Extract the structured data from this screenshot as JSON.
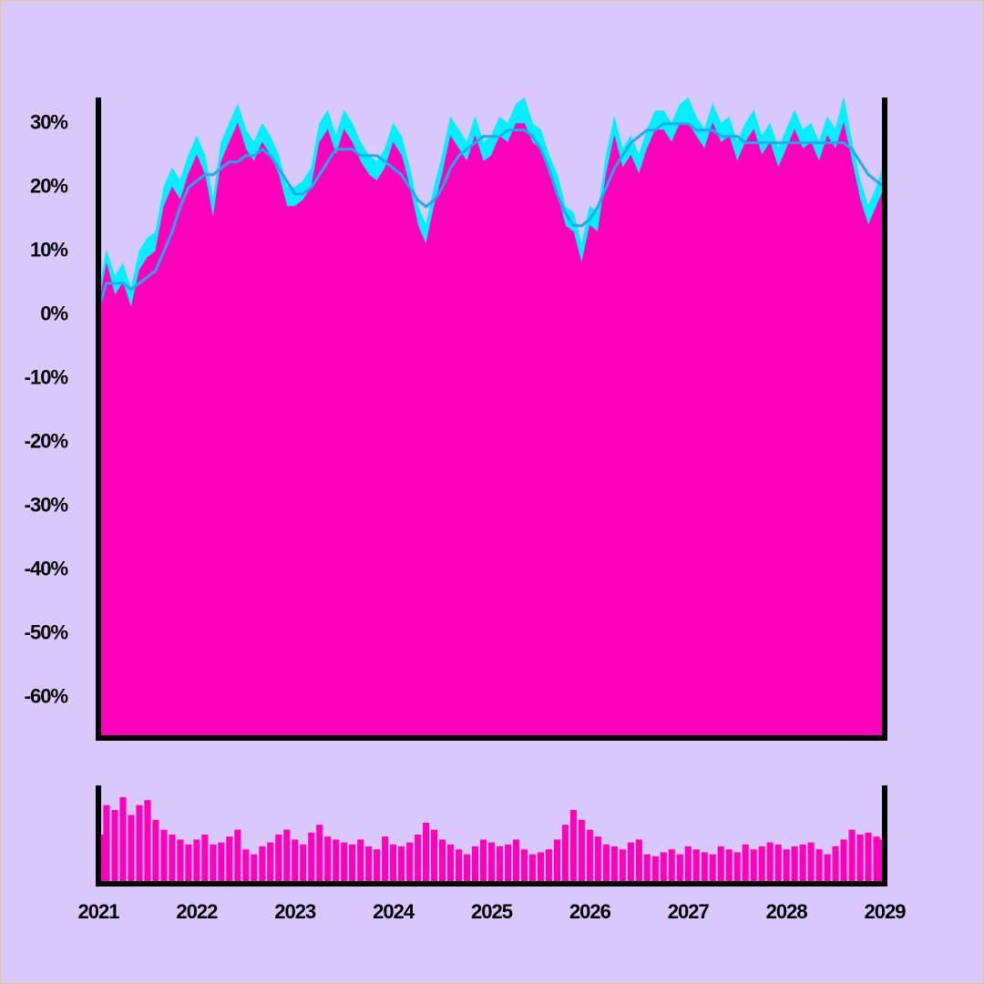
{
  "chart_data": [
    {
      "type": "area",
      "x": [
        2021,
        2021.083,
        2021.167,
        2021.25,
        2021.333,
        2021.417,
        2021.5,
        2021.583,
        2021.667,
        2021.75,
        2021.833,
        2021.917,
        2022,
        2022.083,
        2022.167,
        2022.25,
        2022.333,
        2022.417,
        2022.5,
        2022.583,
        2022.667,
        2022.75,
        2022.833,
        2022.917,
        2023,
        2023.083,
        2023.167,
        2023.25,
        2023.333,
        2023.417,
        2023.5,
        2023.583,
        2023.667,
        2023.75,
        2023.833,
        2023.917,
        2024,
        2024.083,
        2024.167,
        2024.25,
        2024.333,
        2024.417,
        2024.5,
        2024.583,
        2024.667,
        2024.75,
        2024.833,
        2024.917,
        2025,
        2025.083,
        2025.167,
        2025.25,
        2025.333,
        2025.417,
        2025.5,
        2025.583,
        2025.667,
        2025.75,
        2025.833,
        2025.917,
        2026,
        2026.083,
        2026.167,
        2026.25,
        2026.333,
        2026.417,
        2026.5,
        2026.583,
        2026.667,
        2026.75,
        2026.833,
        2026.917,
        2027,
        2027.083,
        2027.167,
        2027.25,
        2027.333,
        2027.417,
        2027.5,
        2027.583,
        2027.667,
        2027.75,
        2027.833,
        2027.917,
        2028,
        2028.083,
        2028.167,
        2028.25,
        2028.333,
        2028.417,
        2028.5,
        2028.583,
        2028.667,
        2028.75,
        2028.833,
        2028.917,
        2029
      ],
      "series": [
        {
          "color": "#00f0ff",
          "values": [
            3,
            10,
            6,
            8,
            4,
            10,
            12,
            13,
            20,
            23,
            21,
            25,
            28,
            25,
            18,
            27,
            30,
            33,
            29,
            27,
            30,
            28,
            25,
            20,
            20,
            21,
            23,
            30,
            32,
            28,
            32,
            30,
            27,
            25,
            24,
            26,
            30,
            28,
            23,
            17,
            14,
            20,
            25,
            31,
            29,
            27,
            31,
            27,
            28,
            31,
            30,
            33,
            34,
            30,
            29,
            25,
            22,
            17,
            16,
            11,
            17,
            16,
            25,
            31,
            26,
            28,
            25,
            29,
            32,
            32,
            30,
            33,
            34,
            31,
            29,
            33,
            30,
            31,
            27,
            30,
            32,
            28,
            30,
            26,
            29,
            32,
            29,
            30,
            27,
            31,
            29,
            34,
            27,
            21,
            17,
            20,
            24
          ]
        },
        {
          "color": "#ff00bb",
          "values": [
            1,
            8,
            3,
            5,
            1,
            7,
            9,
            10,
            17,
            20,
            18,
            22,
            25,
            22,
            15,
            24,
            27,
            30,
            26,
            24,
            27,
            25,
            22,
            17,
            17,
            18,
            20,
            27,
            29,
            25,
            29,
            27,
            24,
            22,
            21,
            23,
            27,
            25,
            20,
            14,
            11,
            17,
            22,
            28,
            26,
            24,
            28,
            24,
            25,
            28,
            27,
            30,
            30,
            27,
            26,
            22,
            19,
            14,
            13,
            8,
            14,
            13,
            22,
            28,
            23,
            25,
            22,
            26,
            29,
            29,
            27,
            30,
            30,
            28,
            26,
            30,
            27,
            28,
            24,
            27,
            29,
            25,
            27,
            23,
            26,
            29,
            26,
            27,
            24,
            28,
            26,
            30,
            24,
            18,
            14,
            17,
            20
          ]
        }
      ],
      "line": {
        "color": "#1eaaee",
        "values": [
          1,
          5,
          5,
          5,
          4,
          5,
          6,
          7,
          10,
          13,
          17,
          20,
          21,
          22,
          22,
          23,
          24,
          24,
          25,
          25,
          26,
          25,
          23,
          21,
          19,
          19,
          20,
          22,
          24,
          26,
          26,
          26,
          25,
          25,
          25,
          24,
          23,
          22,
          20,
          18,
          17,
          18,
          20,
          23,
          25,
          26,
          27,
          28,
          28,
          28,
          29,
          29,
          29,
          28,
          26,
          23,
          19,
          16,
          14,
          14,
          15,
          17,
          20,
          23,
          25,
          27,
          28,
          29,
          29,
          30,
          30,
          30,
          30,
          29,
          29,
          29,
          28,
          28,
          28,
          27,
          27,
          27,
          27,
          27,
          27,
          27,
          27,
          27,
          27,
          27,
          27,
          27,
          26,
          24,
          22,
          21,
          20
        ]
      },
      "xlim": [
        2021,
        2029
      ],
      "ylim": [
        -66.3,
        34.1
      ],
      "yticks": [
        {
          "value": -60,
          "label": "-60%"
        },
        {
          "value": -50,
          "label": "-50%"
        },
        {
          "value": -40,
          "label": "-40%"
        },
        {
          "value": -30,
          "label": "-30%"
        },
        {
          "value": -20,
          "label": "-20%"
        },
        {
          "value": -10,
          "label": "-10%"
        },
        {
          "value": 0,
          "label": "0%"
        },
        {
          "value": 10,
          "label": "10%"
        },
        {
          "value": 20,
          "label": "20%"
        },
        {
          "value": 30,
          "label": "30%"
        }
      ]
    },
    {
      "type": "bar",
      "color": "#ff00bb",
      "values": [
        50,
        80,
        75,
        88,
        70,
        80,
        85,
        65,
        55,
        50,
        45,
        40,
        45,
        50,
        40,
        42,
        48,
        55,
        35,
        30,
        38,
        42,
        50,
        55,
        45,
        40,
        52,
        60,
        48,
        45,
        42,
        40,
        45,
        38,
        35,
        48,
        40,
        38,
        42,
        50,
        62,
        55,
        45,
        40,
        35,
        30,
        38,
        45,
        42,
        38,
        40,
        45,
        35,
        30,
        32,
        35,
        45,
        60,
        75,
        65,
        55,
        48,
        40,
        38,
        35,
        42,
        45,
        30,
        28,
        32,
        35,
        30,
        38,
        35,
        32,
        30,
        38,
        35,
        32,
        40,
        35,
        38,
        42,
        40,
        35,
        38,
        40,
        42,
        35,
        30,
        38,
        45,
        55,
        50,
        52,
        48,
        45
      ],
      "xlim": [
        2021,
        2029
      ],
      "ylim": [
        0,
        100
      ],
      "xticks": [
        2021,
        2022,
        2023,
        2024,
        2025,
        2026,
        2027,
        2028,
        2029
      ]
    }
  ]
}
